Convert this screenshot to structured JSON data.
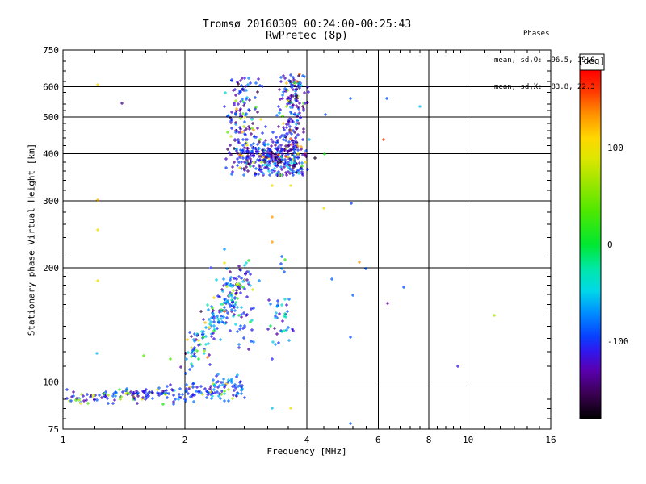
{
  "chart_data": {
    "type": "scatter",
    "title": "Tromsø 20160309 00:24:00-00:25:43",
    "subtitle": "RwPretec (8p)",
    "xlabel": "Frequency [MHz]",
    "ylabel": "Stationary phase Virtual Height [km]",
    "x_scale": "log",
    "y_scale": "log",
    "xlim": [
      1,
      16
    ],
    "ylim": [
      75,
      750
    ],
    "x_major_ticks": [
      1,
      2,
      4,
      6,
      8,
      10,
      16
    ],
    "x_minor_ticks": [
      1.2,
      1.4,
      1.6,
      1.8,
      2.4,
      2.8,
      3.2,
      3.6,
      4.4,
      4.8,
      5.2,
      5.6,
      6.4,
      6.8,
      7.2,
      7.6,
      8.4,
      8.8,
      9.2,
      9.6,
      11,
      12,
      13,
      14,
      15
    ],
    "y_major_ticks": [
      75,
      100,
      200,
      300,
      400,
      500,
      600,
      750
    ],
    "y_minor_ticks": [
      80,
      85,
      90,
      95,
      110,
      120,
      130,
      140,
      150,
      160,
      170,
      180,
      190,
      220,
      240,
      260,
      280,
      320,
      340,
      360,
      380,
      420,
      440,
      460,
      480,
      520,
      540,
      560,
      580,
      620,
      660,
      700,
      740
    ],
    "grid_x": [
      2,
      4,
      6,
      8,
      10
    ],
    "grid_y": [
      100,
      200,
      300,
      400,
      500,
      600
    ],
    "annotation": {
      "heading": "Phases",
      "line_o": "mean, sd,O: -96.5, 19.0",
      "line_x": "mean, sd,X:  83.8, 22.3"
    },
    "marker": "plus",
    "colorbar": {
      "label": "[deg]",
      "ticks": [
        100,
        0,
        -100
      ],
      "range": [
        -180,
        180
      ],
      "stops": [
        {
          "v": -180,
          "c": "#000000"
        },
        {
          "v": -155,
          "c": "#3A0050"
        },
        {
          "v": -130,
          "c": "#5A00B0"
        },
        {
          "v": -110,
          "c": "#3018EE"
        },
        {
          "v": -95,
          "c": "#0840FF"
        },
        {
          "v": -70,
          "c": "#0090FF"
        },
        {
          "v": -48,
          "c": "#00D8E8"
        },
        {
          "v": -25,
          "c": "#00E8A8"
        },
        {
          "v": 0,
          "c": "#00E830"
        },
        {
          "v": 35,
          "c": "#50E800"
        },
        {
          "v": 65,
          "c": "#A0E600"
        },
        {
          "v": 90,
          "c": "#E0E600"
        },
        {
          "v": 110,
          "c": "#FFD800"
        },
        {
          "v": 135,
          "c": "#FF9000"
        },
        {
          "v": 158,
          "c": "#FF3800"
        },
        {
          "v": 180,
          "c": "#FF0000"
        }
      ]
    },
    "seed": 20160309,
    "clusters": [
      {
        "name": "F-region echo blob 380-650 km",
        "n": 640,
        "components": [
          {
            "w": 0.4,
            "logf": {
              "d": "n",
              "m": 0.5023,
              "s": 0.04
            },
            "logh": {
              "d": "n",
              "m": 2.592,
              "s": 0.026,
              "cmin": 2.545,
              "cmax": 2.695
            }
          },
          {
            "w": 0.35,
            "logf": {
              "d": "n",
              "m": 0.5661,
              "s": 0.016
            },
            "logh": {
              "d": "u",
              "min": 2.549,
              "max": 2.811
            }
          },
          {
            "w": 0.25,
            "logf": {
              "d": "n",
              "m": 0.4426,
              "s": 0.024
            },
            "logh": {
              "d": "u",
              "min": 2.602,
              "max": 2.805
            }
          }
        ],
        "phase_mix": [
          {
            "w": 0.45,
            "m": -120,
            "s": 18
          },
          {
            "w": 0.12,
            "m": -145,
            "s": 10
          },
          {
            "w": 0.23,
            "m": -95,
            "s": 12
          },
          {
            "w": 0.1,
            "m": -60,
            "s": 15
          },
          {
            "w": 0.1,
            "lo": -20,
            "hi": 175
          }
        ]
      },
      {
        "name": "E-region diagonal trace 115-210 km",
        "n": 270,
        "components": [
          {
            "w": 0.55,
            "diag": {
              "f0": 0.317,
              "f1": 0.4565,
              "h0": 2.0645,
              "h1": 2.2985,
              "fs": 0.016,
              "hs": 0.0213
            }
          },
          {
            "w": 0.28,
            "logf": {
              "d": "n",
              "m": 0.4127,
              "s": 0.03
            },
            "logh": {
              "d": "n",
              "m": 2.188,
              "s": 0.053
            }
          },
          {
            "w": 0.17,
            "logf": {
              "d": "n",
              "m": 0.5382,
              "s": 0.014
            },
            "logh": {
              "d": "u",
              "min": 2.0964,
              "max": 2.2198
            }
          }
        ],
        "phase_mix": [
          {
            "w": 0.45,
            "m": -95,
            "s": 18
          },
          {
            "w": 0.15,
            "m": -120,
            "s": 15
          },
          {
            "w": 0.22,
            "m": -55,
            "s": 15
          },
          {
            "w": 0.08,
            "m": -20,
            "s": 20
          },
          {
            "w": 0.1,
            "lo": 0,
            "hi": 170
          }
        ]
      },
      {
        "name": "low band 90 km, 1.0-1.8 MHz",
        "n": 110,
        "components": [
          {
            "w": 1.0,
            "diag": {
              "f0": 0.009,
              "f1": 0.255,
              "h0": 1.9562,
              "h1": 1.9693,
              "fs": 0.0,
              "hs": 0.0085
            }
          }
        ],
        "phase_mix": [
          {
            "w": 0.62,
            "m": -100,
            "s": 14
          },
          {
            "w": 0.14,
            "m": -125,
            "s": 10
          },
          {
            "w": 0.24,
            "lo": 10,
            "hi": 110
          }
        ]
      },
      {
        "name": "low band 93-97 km, 1.8-2.8 MHz",
        "n": 95,
        "components": [
          {
            "w": 1.0,
            "diag": {
              "f0": 0.255,
              "f1": 0.45,
              "h0": 1.9693,
              "h1": 1.9797,
              "fs": 0.0,
              "hs": 0.012
            }
          }
        ],
        "phase_mix": [
          {
            "w": 0.75,
            "m": -100,
            "s": 14
          },
          {
            "w": 0.12,
            "m": -60,
            "s": 14
          },
          {
            "w": 0.05,
            "m": -130,
            "s": 8
          },
          {
            "w": 0.08,
            "lo": 20,
            "hi": 130
          }
        ]
      },
      {
        "name": "100 km ledge 2.3-2.8 MHz",
        "n": 25,
        "components": [
          {
            "w": 1.0,
            "logf": {
              "d": "u",
              "min": 0.37,
              "max": 0.442
            },
            "logh": {
              "d": "u",
              "min": 1.987,
              "max": 2.021
            }
          }
        ],
        "phase_mix": [
          {
            "w": 0.6,
            "m": -100,
            "s": 15
          },
          {
            "w": 0.3,
            "m": -60,
            "s": 12
          },
          {
            "w": 0.1,
            "lo": 60,
            "hi": 140
          }
        ]
      }
    ],
    "isolated_points": [
      [
        1.22,
        607,
        110
      ],
      [
        1.4,
        543,
        -135
      ],
      [
        1.22,
        301,
        125
      ],
      [
        1.22,
        251,
        100
      ],
      [
        1.22,
        185,
        100
      ],
      [
        1.21,
        119,
        -55
      ],
      [
        1.58,
        117,
        40
      ],
      [
        1.84,
        115,
        30
      ],
      [
        5.13,
        559,
        -90
      ],
      [
        6.3,
        560,
        -90
      ],
      [
        7.61,
        533,
        -55
      ],
      [
        4.45,
        506,
        -95
      ],
      [
        6.19,
        436,
        165
      ],
      [
        4.43,
        399,
        10
      ],
      [
        4.41,
        287,
        100
      ],
      [
        5.15,
        296,
        -95
      ],
      [
        3.28,
        357,
        -95
      ],
      [
        3.28,
        329,
        100
      ],
      [
        3.65,
        329,
        100
      ],
      [
        3.28,
        272,
        130
      ],
      [
        3.28,
        234,
        130
      ],
      [
        2.5,
        206,
        100
      ],
      [
        3.47,
        214,
        -90
      ],
      [
        3.53,
        210,
        20
      ],
      [
        3.45,
        205,
        -95
      ],
      [
        3.47,
        199,
        -70
      ],
      [
        3.52,
        195,
        -90
      ],
      [
        2.72,
        202,
        -140
      ],
      [
        2.73,
        198,
        -140
      ],
      [
        2.59,
        195,
        -140
      ],
      [
        5.39,
        207,
        135
      ],
      [
        5.59,
        199,
        -90
      ],
      [
        4.61,
        187,
        -85
      ],
      [
        6.94,
        178,
        -90
      ],
      [
        5.2,
        169,
        -85
      ],
      [
        6.33,
        161,
        -140
      ],
      [
        11.6,
        150,
        70
      ],
      [
        5.13,
        131,
        -90
      ],
      [
        9.44,
        110,
        -115
      ],
      [
        5.13,
        77.6,
        -90
      ],
      [
        2.87,
        122,
        -135
      ],
      [
        3.28,
        115,
        -105
      ],
      [
        3.28,
        85,
        -55
      ],
      [
        3.65,
        85,
        105
      ]
    ]
  }
}
